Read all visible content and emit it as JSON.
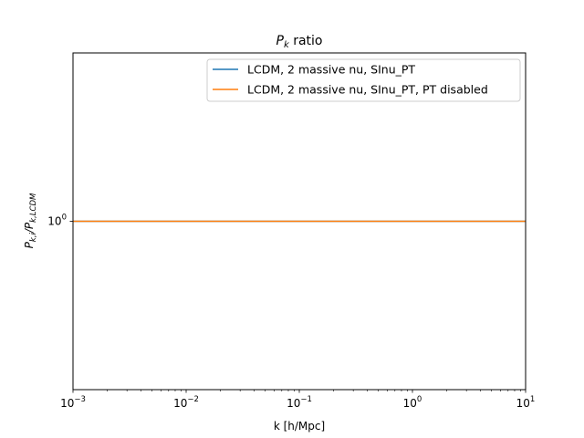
{
  "chart_data": {
    "type": "line",
    "title": "P_k ratio",
    "title_main": "P",
    "title_sub": "k",
    "title_rest": " ratio",
    "xlabel": "k [h/Mpc]",
    "ylabel_main": "P",
    "ylabel_sub": "k,i",
    "ylabel_mid": "/P",
    "ylabel_sub2": "k,LCDM",
    "xscale": "log",
    "yscale": "log",
    "xlim": [
      0.001,
      10
    ],
    "ylim": [
      0.5,
      2.0
    ],
    "x_ticks": [
      {
        "value": 0.001,
        "base": "10",
        "exp": "−3"
      },
      {
        "value": 0.01,
        "base": "10",
        "exp": "−2"
      },
      {
        "value": 0.1,
        "base": "10",
        "exp": "−1"
      },
      {
        "value": 1,
        "base": "10",
        "exp": "0"
      },
      {
        "value": 10,
        "base": "10",
        "exp": "1"
      }
    ],
    "y_ticks": [
      {
        "value": 1,
        "base": "10",
        "exp": "0"
      }
    ],
    "legend_position": "top-right",
    "series": [
      {
        "name": "LCDM, 2 massive nu, SInu_PT",
        "color": "#1f77b4",
        "x": [
          0.001,
          10
        ],
        "y": [
          1.0,
          1.0
        ]
      },
      {
        "name": "LCDM, 2 massive nu, SInu_PT, PT disabled",
        "color": "#ff7f0e",
        "x": [
          0.001,
          10
        ],
        "y": [
          1.0,
          1.0
        ]
      }
    ]
  }
}
